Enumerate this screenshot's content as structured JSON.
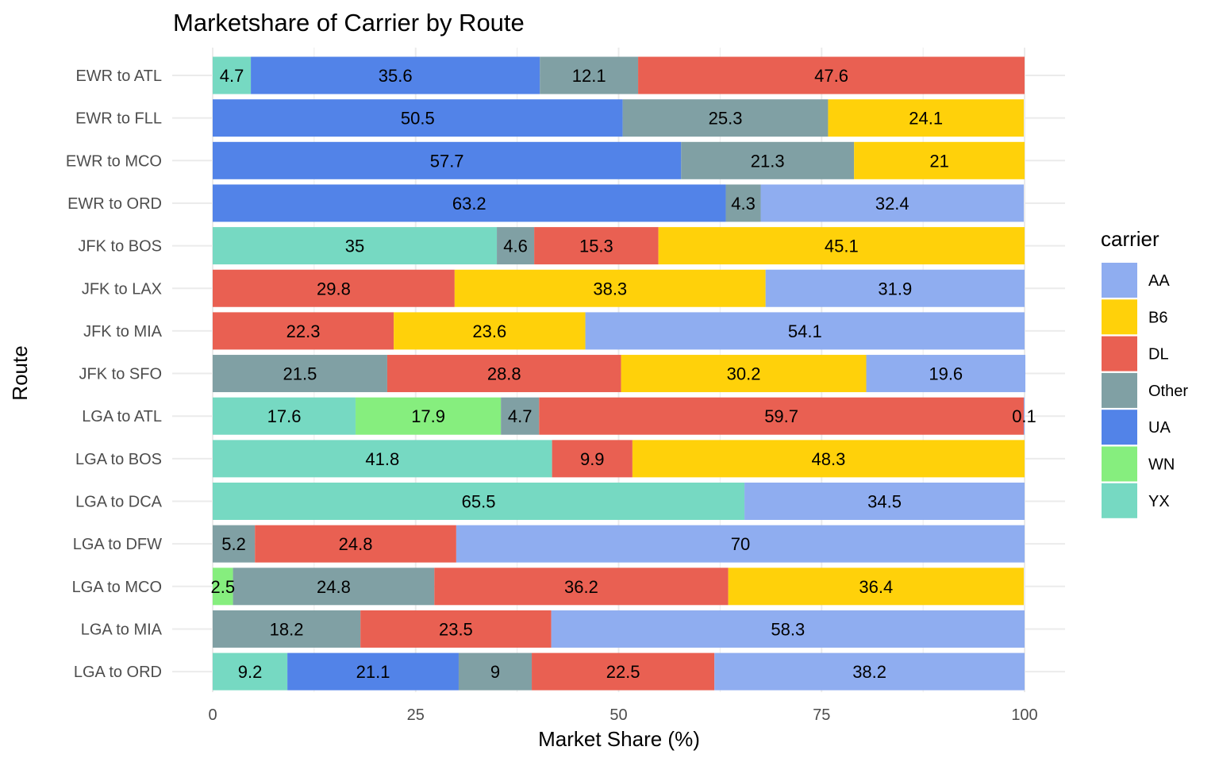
{
  "chart_data": {
    "type": "bar",
    "orientation": "horizontal",
    "stacked": true,
    "title": "Marketshare of Carrier by Route",
    "xlabel": "Market Share (%)",
    "ylabel": "Route",
    "xlim": [
      0,
      100
    ],
    "x_ticks": [
      "0",
      "25",
      "50",
      "75",
      "100"
    ],
    "grid": true,
    "legend_title": "carrier",
    "legend_position": "right",
    "carriers": [
      {
        "name": "AA",
        "color": "#8fadf0"
      },
      {
        "name": "B6",
        "color": "#ffd10a"
      },
      {
        "name": "DL",
        "color": "#e96052"
      },
      {
        "name": "Other",
        "color": "#80a0a4"
      },
      {
        "name": "UA",
        "color": "#5283e8"
      },
      {
        "name": "WN",
        "color": "#86ee7e"
      },
      {
        "name": "YX",
        "color": "#76d9c2"
      }
    ],
    "stack_order": [
      "YX",
      "WN",
      "UA",
      "Other",
      "DL",
      "B6",
      "AA"
    ],
    "routes": [
      {
        "route": "LGA  to  ORD",
        "segments": [
          {
            "carrier": "YX",
            "value": 9.2
          },
          {
            "carrier": "UA",
            "value": 21.1
          },
          {
            "carrier": "Other",
            "value": 9
          },
          {
            "carrier": "DL",
            "value": 22.5
          },
          {
            "carrier": "AA",
            "value": 38.2
          }
        ]
      },
      {
        "route": "LGA  to  MIA",
        "segments": [
          {
            "carrier": "Other",
            "value": 18.2
          },
          {
            "carrier": "DL",
            "value": 23.5
          },
          {
            "carrier": "AA",
            "value": 58.3
          }
        ]
      },
      {
        "route": "LGA  to  MCO",
        "segments": [
          {
            "carrier": "WN",
            "value": 2.5
          },
          {
            "carrier": "Other",
            "value": 24.8
          },
          {
            "carrier": "DL",
            "value": 36.2
          },
          {
            "carrier": "B6",
            "value": 36.4
          }
        ]
      },
      {
        "route": "LGA  to  DFW",
        "segments": [
          {
            "carrier": "Other",
            "value": 5.2
          },
          {
            "carrier": "DL",
            "value": 24.8
          },
          {
            "carrier": "AA",
            "value": 70
          }
        ]
      },
      {
        "route": "LGA  to  DCA",
        "segments": [
          {
            "carrier": "YX",
            "value": 65.5
          },
          {
            "carrier": "AA",
            "value": 34.5
          }
        ]
      },
      {
        "route": "LGA  to  BOS",
        "segments": [
          {
            "carrier": "YX",
            "value": 41.8
          },
          {
            "carrier": "DL",
            "value": 9.9
          },
          {
            "carrier": "B6",
            "value": 48.3
          }
        ]
      },
      {
        "route": "LGA  to  ATL",
        "segments": [
          {
            "carrier": "YX",
            "value": 17.6
          },
          {
            "carrier": "WN",
            "value": 17.9
          },
          {
            "carrier": "Other",
            "value": 4.7
          },
          {
            "carrier": "DL",
            "value": 59.7
          },
          {
            "carrier": "AA",
            "value": 0.1
          }
        ]
      },
      {
        "route": "JFK  to  SFO",
        "segments": [
          {
            "carrier": "Other",
            "value": 21.5
          },
          {
            "carrier": "DL",
            "value": 28.8
          },
          {
            "carrier": "B6",
            "value": 30.2
          },
          {
            "carrier": "AA",
            "value": 19.6
          }
        ]
      },
      {
        "route": "JFK  to  MIA",
        "segments": [
          {
            "carrier": "DL",
            "value": 22.3
          },
          {
            "carrier": "B6",
            "value": 23.6
          },
          {
            "carrier": "AA",
            "value": 54.1
          }
        ]
      },
      {
        "route": "JFK  to  LAX",
        "segments": [
          {
            "carrier": "DL",
            "value": 29.8
          },
          {
            "carrier": "B6",
            "value": 38.3
          },
          {
            "carrier": "AA",
            "value": 31.9
          }
        ]
      },
      {
        "route": "JFK  to  BOS",
        "segments": [
          {
            "carrier": "YX",
            "value": 35
          },
          {
            "carrier": "Other",
            "value": 4.6
          },
          {
            "carrier": "DL",
            "value": 15.3
          },
          {
            "carrier": "B6",
            "value": 45.1
          }
        ]
      },
      {
        "route": "EWR  to  ORD",
        "segments": [
          {
            "carrier": "UA",
            "value": 63.2
          },
          {
            "carrier": "Other",
            "value": 4.3
          },
          {
            "carrier": "AA",
            "value": 32.4
          }
        ]
      },
      {
        "route": "EWR  to  MCO",
        "segments": [
          {
            "carrier": "UA",
            "value": 57.7
          },
          {
            "carrier": "Other",
            "value": 21.3
          },
          {
            "carrier": "B6",
            "value": 21
          }
        ]
      },
      {
        "route": "EWR  to  FLL",
        "segments": [
          {
            "carrier": "UA",
            "value": 50.5
          },
          {
            "carrier": "Other",
            "value": 25.3
          },
          {
            "carrier": "B6",
            "value": 24.1
          }
        ]
      },
      {
        "route": "EWR  to  ATL",
        "segments": [
          {
            "carrier": "YX",
            "value": 4.7
          },
          {
            "carrier": "UA",
            "value": 35.6
          },
          {
            "carrier": "Other",
            "value": 12.1
          },
          {
            "carrier": "DL",
            "value": 47.6
          }
        ]
      }
    ]
  }
}
